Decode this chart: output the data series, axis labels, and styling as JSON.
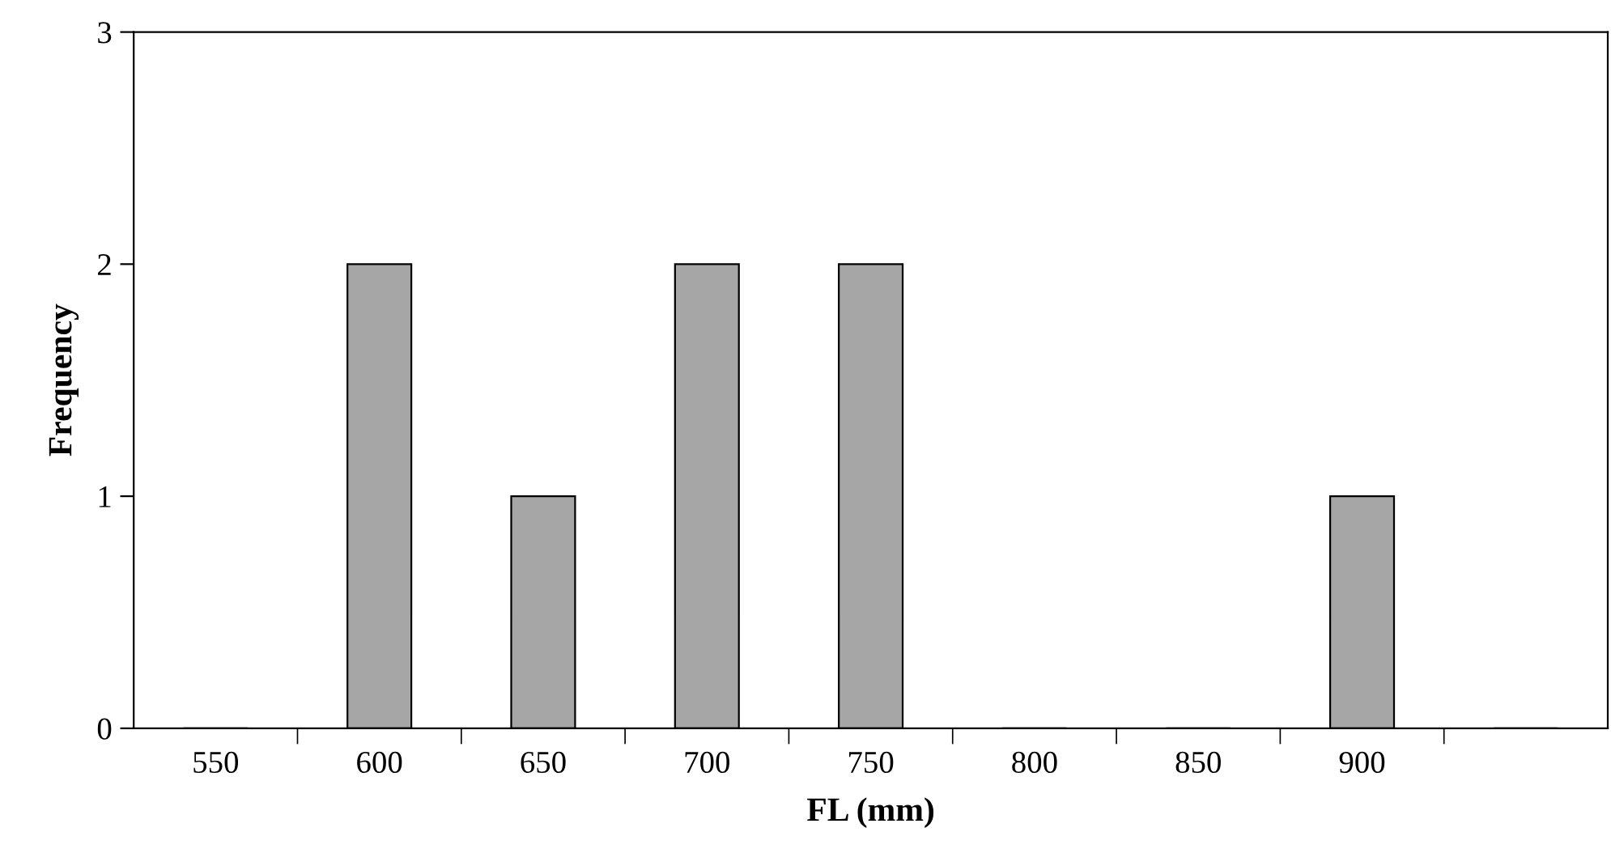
{
  "chart_data": {
    "type": "bar",
    "xlabel": "FL (mm)",
    "ylabel": "Frequency",
    "categories": [
      "550",
      "600",
      "650",
      "700",
      "750",
      "800",
      "850",
      "900",
      null
    ],
    "values": [
      0,
      2,
      1,
      2,
      2,
      0,
      0,
      1,
      0
    ],
    "color": "#a6a6a6",
    "ylim": [
      0,
      3
    ],
    "yticks": [
      0,
      1,
      2,
      3
    ],
    "grid": false,
    "legend": false
  }
}
